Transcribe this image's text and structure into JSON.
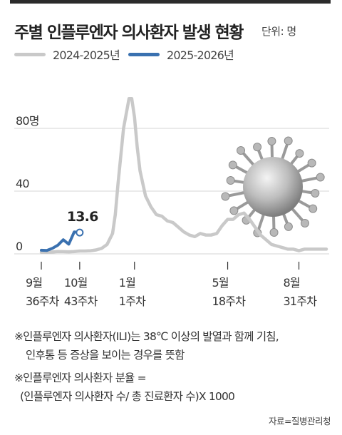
{
  "header": {
    "title": "주별 인플루엔자 의사환자 발생 현황",
    "unit": "단위: 명"
  },
  "colors": {
    "series_prev": "#c9c9c9",
    "series_curr": "#3a71b0",
    "gridline": "#d6d6d6",
    "text": "#222222"
  },
  "chart_data": {
    "type": "line",
    "xlabel": "",
    "ylabel": "",
    "ylim": [
      0,
      100
    ],
    "y_ticks": [
      {
        "value": 0,
        "label": "0"
      },
      {
        "value": 40,
        "label": "40"
      },
      {
        "value": 80,
        "label": "80명"
      }
    ],
    "x_ticks": [
      {
        "week": 36,
        "line1": "9월",
        "line2": "36주차"
      },
      {
        "week": 43,
        "line1": "10월",
        "line2": "43주차"
      },
      {
        "week": 53,
        "line1": "1월",
        "line2": "1주차"
      },
      {
        "week": 70,
        "line1": "5월",
        "line2": "18주차"
      },
      {
        "week": 83,
        "line1": "8월",
        "line2": "31주차"
      }
    ],
    "grid": true,
    "legend_position": "top-left",
    "series": [
      {
        "name": "2024-2025년",
        "x": [
          36,
          37,
          38,
          39,
          40,
          41,
          42,
          43,
          44,
          45,
          46,
          47,
          48,
          49,
          49.5,
          50,
          51,
          52,
          52.5,
          53,
          53.5,
          54,
          55,
          56,
          57,
          58,
          59,
          60,
          61,
          62,
          63,
          64,
          65,
          66,
          67,
          68,
          69,
          70,
          71,
          72,
          73,
          74,
          75,
          76,
          77,
          78,
          79,
          80,
          81,
          82,
          83,
          84,
          85,
          86,
          87,
          88
        ],
        "values": [
          1.0,
          1.0,
          1.2,
          1.5,
          1.4,
          1.3,
          1.5,
          1.8,
          1.8,
          2.0,
          2.5,
          3.5,
          6.0,
          13.0,
          25,
          45,
          80,
          99,
          99,
          87,
          68,
          53,
          37,
          30,
          25,
          24,
          21,
          20,
          17,
          14,
          12,
          11,
          13,
          12,
          12,
          13,
          18,
          22,
          22,
          25,
          26,
          22,
          17,
          12,
          9,
          6,
          5,
          4,
          3,
          3,
          2,
          3,
          3,
          3,
          3,
          3
        ]
      },
      {
        "name": "2025-2026년",
        "x": [
          36,
          37,
          38,
          39,
          40,
          41,
          42,
          43
        ],
        "values": [
          2.3,
          2.2,
          3.5,
          5.5,
          9.0,
          6.2,
          14.0,
          13.6
        ],
        "end_label": "13.6"
      }
    ]
  },
  "notes": [
    "※인플루엔자 의사환자(ILI)는 38℃ 이상의 발열과 함께 기침,",
    "인후통 등 증상을 보이는 경우를 뜻함",
    "※인플루엔자 의사환자 분율 =",
    "(인플루엔자 의사환자 수/ 총 진료환자 수)X 1000"
  ],
  "source": "자료=질병관리청"
}
